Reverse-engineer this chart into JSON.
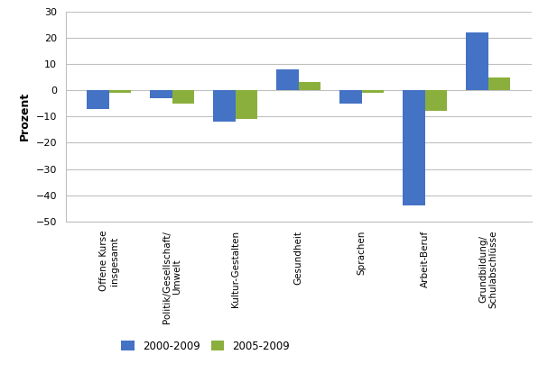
{
  "categories": [
    "Offene Kurse\ninsgesamt",
    "Politik/Gesellschaft/\nUmwelt",
    "Kultur-Gestalten",
    "Gesundheit",
    "Sprachen",
    "Arbeit-Beruf",
    "Grundbildung/\nSchulabschlüsse"
  ],
  "values_2000_2009": [
    -7,
    -3,
    -12,
    8,
    -5,
    -44,
    22
  ],
  "values_2005_2009": [
    -1,
    -5,
    -11,
    3,
    -1,
    -8,
    5
  ],
  "color_2000": "#4472C4",
  "color_2005": "#8BAF3C",
  "ylabel": "Prozent",
  "ylim": [
    -50,
    30
  ],
  "yticks": [
    -50,
    -40,
    -30,
    -20,
    -10,
    0,
    10,
    20,
    30
  ],
  "legend_labels": [
    "2000-2009",
    "2005-2009"
  ],
  "bar_width": 0.35,
  "background_color": "#ffffff",
  "grid_color": "#c0c0c0"
}
